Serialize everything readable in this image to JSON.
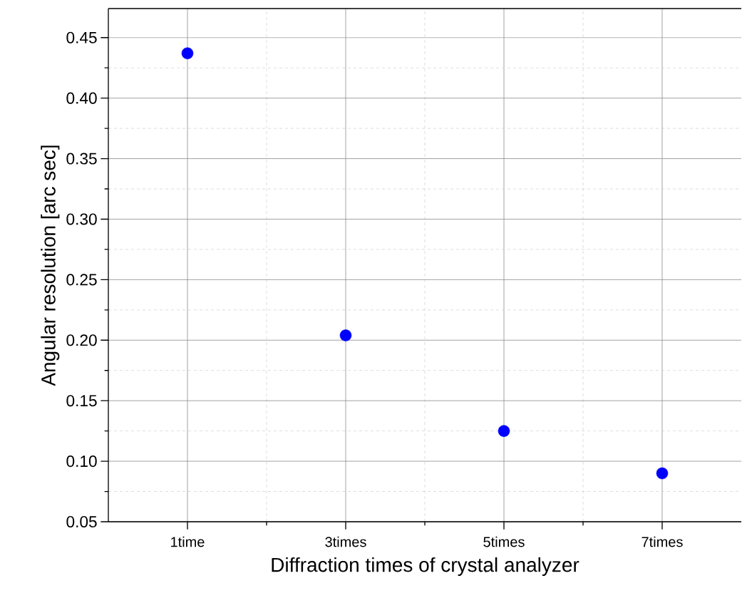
{
  "chart_data": {
    "type": "scatter",
    "xlabel": "Diffraction times of crystal analyzer",
    "ylabel": "Angular resolution [arc sec]",
    "categories": [
      "1time",
      "3times",
      "5times",
      "7times"
    ],
    "series": [
      {
        "color": "#0000ff",
        "values": [
          0.437,
          0.204,
          0.125,
          0.09
        ]
      }
    ],
    "ylim": [
      0.05,
      0.474
    ],
    "yticks": [
      0.05,
      {
        "value": 0.1,
        "label": "0.10"
      },
      0.15,
      {
        "value": 0.2,
        "label": "0.20"
      },
      0.25,
      {
        "value": 0.3,
        "label": "0.30"
      },
      0.35,
      {
        "value": 0.4,
        "label": "0.40"
      },
      0.45
    ],
    "grid": true,
    "marker": "circle"
  }
}
